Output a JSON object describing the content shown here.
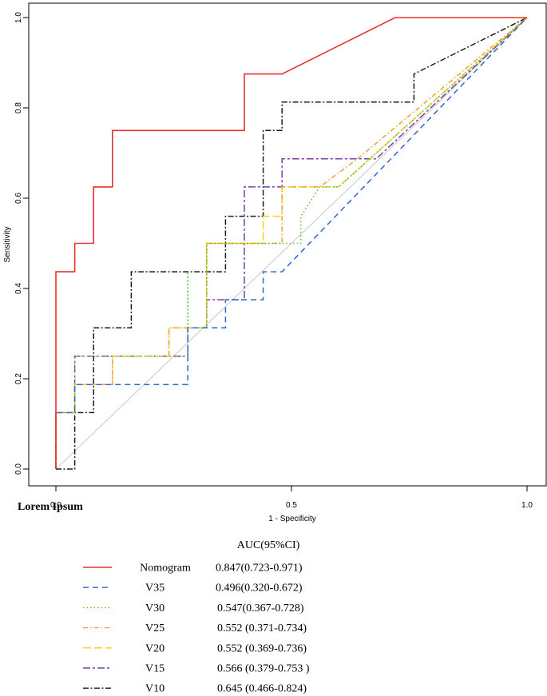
{
  "footer_label": "Lorem Ipsum",
  "chart_data": {
    "type": "line",
    "title": "",
    "xlabel": "1 - Specificity",
    "ylabel": "Sensitivity",
    "xlim": [
      0,
      1
    ],
    "ylim": [
      0,
      1
    ],
    "x_ticks": [
      "0.0",
      "0.5",
      "1.0"
    ],
    "y_ticks": [
      "0.0",
      "0.2",
      "0.4",
      "0.6",
      "0.8",
      "1.0"
    ],
    "reference_line": true,
    "legend_title": "AUC(95%CI)",
    "series": [
      {
        "name": "Nomogram",
        "auc": "0.847(0.723-0.971)",
        "color": "#e8322b",
        "dash": "solid",
        "points": [
          [
            0,
            0
          ],
          [
            0,
            0.437
          ],
          [
            0.04,
            0.437
          ],
          [
            0.04,
            0.5
          ],
          [
            0.08,
            0.5
          ],
          [
            0.08,
            0.625
          ],
          [
            0.12,
            0.625
          ],
          [
            0.12,
            0.75
          ],
          [
            0.4,
            0.75
          ],
          [
            0.4,
            0.875
          ],
          [
            0.48,
            0.875
          ],
          [
            0.72,
            1
          ],
          [
            1,
            1
          ]
        ]
      },
      {
        "name": "V35",
        "auc": "0.496(0.320-0.672)",
        "color": "#2f66c8",
        "dash": "long",
        "points": [
          [
            0,
            0
          ],
          [
            0,
            0.125
          ],
          [
            0.04,
            0.125
          ],
          [
            0.04,
            0.187
          ],
          [
            0.28,
            0.187
          ],
          [
            0.28,
            0.313
          ],
          [
            0.36,
            0.313
          ],
          [
            0.36,
            0.375
          ],
          [
            0.44,
            0.375
          ],
          [
            0.44,
            0.437
          ],
          [
            0.48,
            0.437
          ],
          [
            1,
            1
          ]
        ]
      },
      {
        "name": "V30",
        "auc": "0.547(0.367-0.728)",
        "color": "#5fbf2c",
        "dash": "dotted",
        "points": [
          [
            0,
            0
          ],
          [
            0,
            0.125
          ],
          [
            0.04,
            0.125
          ],
          [
            0.04,
            0.25
          ],
          [
            0.28,
            0.25
          ],
          [
            0.28,
            0.437
          ],
          [
            0.28,
            0.313
          ],
          [
            0.32,
            0.313
          ],
          [
            0.32,
            0.5
          ],
          [
            0.52,
            0.5
          ],
          [
            0.52,
            0.56
          ],
          [
            0.56,
            0.625
          ],
          [
            0.6,
            0.625
          ],
          [
            1,
            1
          ]
        ]
      },
      {
        "name": "V25",
        "auc": "0.552 (0.371-0.734)",
        "color": "#f0a030",
        "dash": "dashdot",
        "points": [
          [
            0,
            0
          ],
          [
            0,
            0.125
          ],
          [
            0.04,
            0.125
          ],
          [
            0.04,
            0.187
          ],
          [
            0.12,
            0.187
          ],
          [
            0.12,
            0.25
          ],
          [
            0.24,
            0.25
          ],
          [
            0.24,
            0.313
          ],
          [
            0.32,
            0.313
          ],
          [
            0.32,
            0.5
          ],
          [
            0.48,
            0.5
          ],
          [
            0.48,
            0.625
          ],
          [
            0.56,
            0.625
          ],
          [
            0.64,
            0.687
          ],
          [
            1,
            1
          ]
        ]
      },
      {
        "name": "V20",
        "auc": "0.552 (0.369-0.736)",
        "color": "#f2d417",
        "dash": "longdash",
        "points": [
          [
            0,
            0
          ],
          [
            0,
            0.125
          ],
          [
            0.04,
            0.125
          ],
          [
            0.04,
            0.187
          ],
          [
            0.12,
            0.187
          ],
          [
            0.12,
            0.25
          ],
          [
            0.24,
            0.25
          ],
          [
            0.24,
            0.313
          ],
          [
            0.32,
            0.313
          ],
          [
            0.32,
            0.5
          ],
          [
            0.44,
            0.5
          ],
          [
            0.44,
            0.56
          ],
          [
            0.48,
            0.56
          ],
          [
            0.48,
            0.625
          ],
          [
            0.6,
            0.625
          ],
          [
            1,
            1
          ]
        ]
      },
      {
        "name": "V15",
        "auc": "0.566 (0.379-0.753 )",
        "color": "#7b3fa8",
        "dash": "twodash",
        "points": [
          [
            0,
            0
          ],
          [
            0,
            0.125
          ],
          [
            0.04,
            0.125
          ],
          [
            0.04,
            0.25
          ],
          [
            0.28,
            0.25
          ],
          [
            0.28,
            0.313
          ],
          [
            0.32,
            0.313
          ],
          [
            0.32,
            0.375
          ],
          [
            0.4,
            0.375
          ],
          [
            0.4,
            0.437
          ],
          [
            0.4,
            0.625
          ],
          [
            0.48,
            0.625
          ],
          [
            0.48,
            0.687
          ],
          [
            0.68,
            0.687
          ],
          [
            1,
            1
          ]
        ]
      },
      {
        "name": "V10",
        "auc": "0.645 (0.466-0.824)",
        "color": "#1a1a1a",
        "dash": "dashdot2",
        "points": [
          [
            0,
            0
          ],
          [
            0.04,
            0
          ],
          [
            0.04,
            0.125
          ],
          [
            0.08,
            0.125
          ],
          [
            0.08,
            0.313
          ],
          [
            0.16,
            0.313
          ],
          [
            0.16,
            0.437
          ],
          [
            0.36,
            0.437
          ],
          [
            0.36,
            0.56
          ],
          [
            0.44,
            0.56
          ],
          [
            0.44,
            0.75
          ],
          [
            0.48,
            0.75
          ],
          [
            0.48,
            0.813
          ],
          [
            0.76,
            0.813
          ],
          [
            0.76,
            0.875
          ],
          [
            1,
            1
          ]
        ]
      }
    ]
  }
}
